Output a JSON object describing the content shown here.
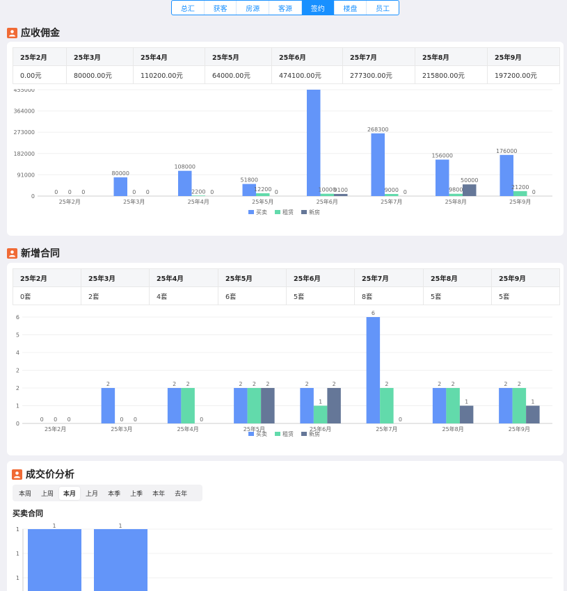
{
  "nav": {
    "tabs": [
      "总汇",
      "获客",
      "房源",
      "客源",
      "签约",
      "楼盘",
      "员工"
    ],
    "active": 4
  },
  "colors": {
    "buy_sell": "#6395f9",
    "rent": "#62daab",
    "new_house": "#657798",
    "accent": "#1890ff",
    "icon": "#f06a35"
  },
  "commission": {
    "title": "应收佣金",
    "months": [
      "25年2月",
      "25年3月",
      "25年4月",
      "25年5月",
      "25年6月",
      "25年7月",
      "25年8月",
      "25年9月"
    ],
    "amounts": [
      "0.00元",
      "80000.00元",
      "110200.00元",
      "64000.00元",
      "474100.00元",
      "277300.00元",
      "215800.00元",
      "197200.00元"
    ]
  },
  "contracts": {
    "title": "新增合同",
    "months": [
      "25年2月",
      "25年3月",
      "25年4月",
      "25年5月",
      "25年6月",
      "25年7月",
      "25年8月",
      "25年9月"
    ],
    "counts": [
      "0套",
      "2套",
      "4套",
      "6套",
      "5套",
      "8套",
      "5套",
      "5套"
    ]
  },
  "price_analysis": {
    "title": "成交价分析",
    "periods": [
      "本周",
      "上周",
      "本月",
      "上月",
      "本季",
      "上季",
      "本年",
      "去年"
    ],
    "active_period": 2,
    "subtitle": "买卖合同"
  },
  "chart_data": [
    {
      "type": "bar",
      "categories": [
        "25年2月",
        "25年3月",
        "25年4月",
        "25年5月",
        "25年6月",
        "25年7月",
        "25年8月",
        "25年9月"
      ],
      "series": [
        {
          "name": "买卖",
          "values": [
            0,
            80000,
            108000,
            51800,
            455000,
            268300,
            156000,
            176000
          ]
        },
        {
          "name": "租赁",
          "values": [
            0,
            0,
            2200,
            12200,
            10000,
            9000,
            9800,
            21200
          ]
        },
        {
          "name": "新房",
          "values": [
            0,
            0,
            0,
            0,
            9100,
            0,
            50000,
            0
          ]
        }
      ],
      "yticks": [
        "0",
        "91000",
        "182000",
        "273000",
        "364000",
        "455000"
      ],
      "ylim": [
        0,
        455000
      ],
      "grid": true,
      "legend": "bottom"
    },
    {
      "type": "bar",
      "categories": [
        "25年2月",
        "25年3月",
        "25年4月",
        "25年5月",
        "25年6月",
        "25年7月",
        "25年8月",
        "25年9月"
      ],
      "series": [
        {
          "name": "买卖",
          "values": [
            0,
            2,
            2,
            2,
            2,
            6,
            2,
            2
          ]
        },
        {
          "name": "租赁",
          "values": [
            0,
            0,
            2,
            2,
            1,
            2,
            2,
            2
          ]
        },
        {
          "name": "新房",
          "values": [
            0,
            0,
            0,
            2,
            2,
            0,
            1,
            1
          ]
        }
      ],
      "yticks": [
        "0",
        "1",
        "2",
        "2",
        "4",
        "5",
        "6"
      ],
      "ylim": [
        0,
        6
      ],
      "grid": true,
      "legend": "bottom"
    },
    {
      "type": "bar",
      "title": "买卖合同",
      "categories": [
        "",
        ""
      ],
      "series": [
        {
          "name": "",
          "values": [
            1,
            1
          ]
        }
      ],
      "yticks": [
        "1",
        "1",
        "1"
      ],
      "ylim": [
        0,
        1
      ],
      "grid": true
    }
  ]
}
